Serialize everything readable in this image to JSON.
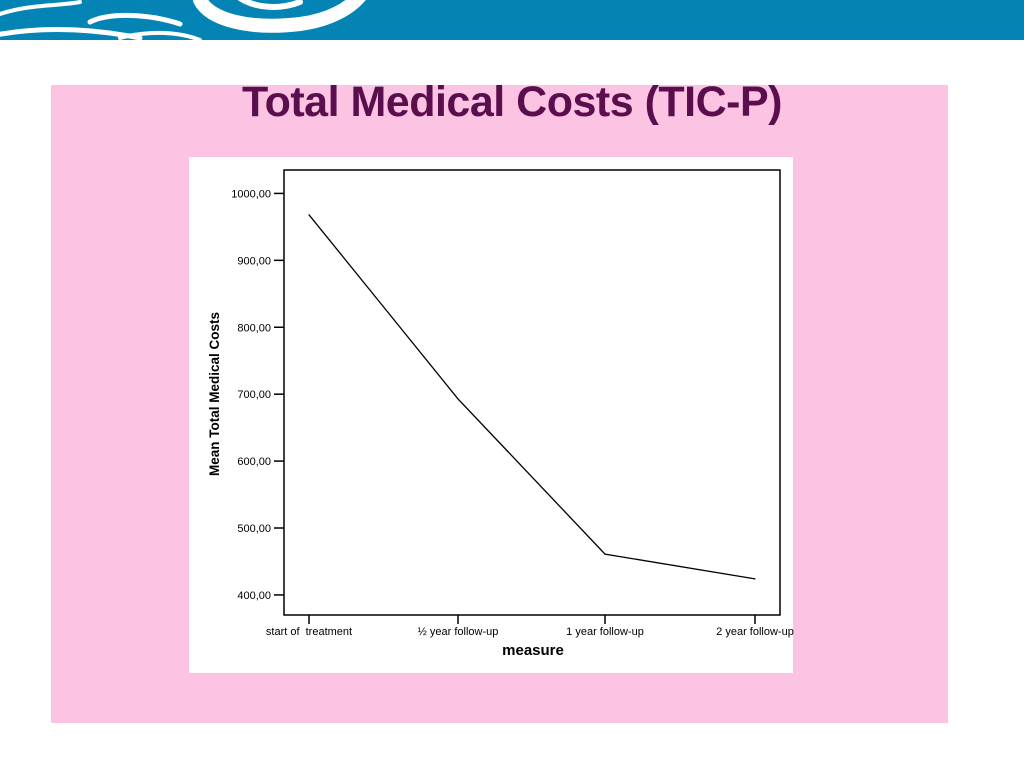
{
  "colors": {
    "banner": "#0384b4",
    "banner_pattern": "#ffffff",
    "panel": "#fdc3e3",
    "title": "#5a0e4e",
    "line": "#000000"
  },
  "chart_data": {
    "type": "line",
    "title": "Total Medical Costs (TIC-P)",
    "xlabel": "measure",
    "ylabel": "Mean Total Medical Costs",
    "categories": [
      "start of  treatment",
      "½ year follow-up",
      "1 year follow-up",
      "2 year follow-up"
    ],
    "values": [
      968,
      693,
      461,
      424
    ],
    "ylim": [
      370,
      1035
    ],
    "yticks": [
      1000,
      900,
      800,
      700,
      600,
      500,
      400
    ],
    "ytick_labels": [
      "1000,00",
      "900,00",
      "800,00",
      "700,00",
      "600,00",
      "500,00",
      "400,00"
    ],
    "grid": false,
    "legend": "none"
  }
}
